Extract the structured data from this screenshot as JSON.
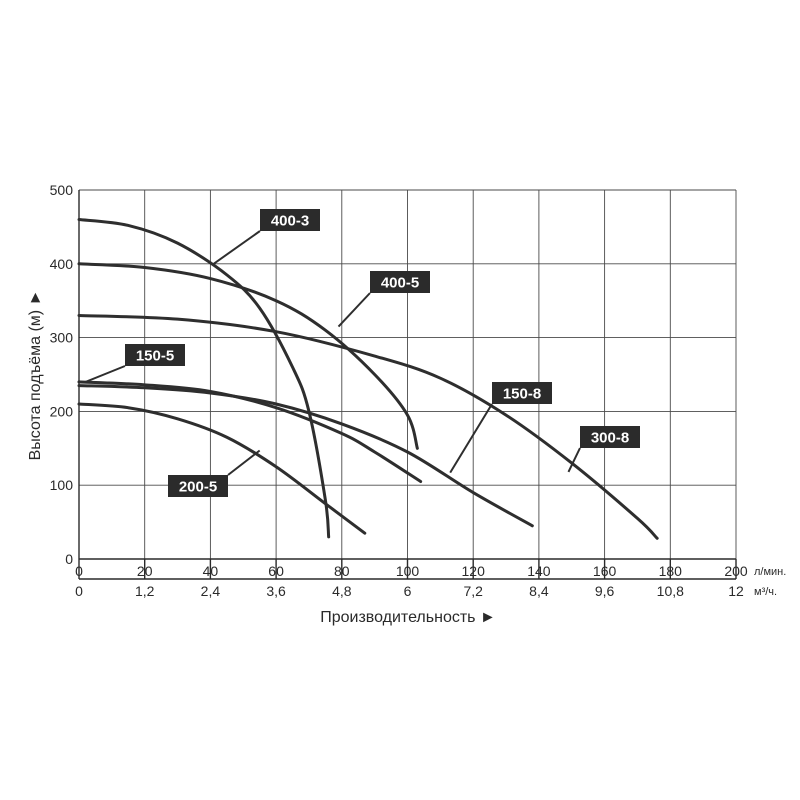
{
  "chart_data": {
    "type": "line",
    "ylabel": "Высота подъёма (м) ►",
    "xlabel": "Производительность ►",
    "x_unit": "л/мин.",
    "x2_unit": "м³/ч.",
    "xlim": [
      0,
      200
    ],
    "ylim": [
      0,
      500
    ],
    "x_ticks": [
      "0",
      "20",
      "40",
      "60",
      "80",
      "100",
      "120",
      "140",
      "160",
      "180",
      "200"
    ],
    "x2_ticks": [
      "0",
      "1,2",
      "2,4",
      "3,6",
      "4,8",
      "6",
      "7,2",
      "8,4",
      "9,6",
      "10,8",
      "12"
    ],
    "y_ticks": [
      "0",
      "100",
      "200",
      "300",
      "400",
      "500"
    ],
    "grid": true,
    "colors": {
      "curve": "#2e2e2e",
      "tag_bg": "#2b2b2b",
      "tag_text": "#ffffff",
      "grid": "#4a4a4a"
    },
    "series": [
      {
        "name": "400-3",
        "x": [
          0,
          15,
          30,
          45,
          55,
          65,
          70,
          75,
          76
        ],
        "y": [
          460,
          452,
          428,
          385,
          340,
          260,
          200,
          80,
          30
        ]
      },
      {
        "name": "400-5",
        "x": [
          0,
          20,
          40,
          60,
          75,
          90,
          100,
          103
        ],
        "y": [
          400,
          395,
          380,
          350,
          310,
          250,
          195,
          150
        ]
      },
      {
        "name": "300-8",
        "x": [
          0,
          30,
          60,
          90,
          110,
          130,
          150,
          170,
          176
        ],
        "y": [
          330,
          325,
          308,
          275,
          245,
          195,
          130,
          55,
          28
        ]
      },
      {
        "name": "150-8",
        "x": [
          0,
          20,
          40,
          60,
          80,
          100,
          120,
          138
        ],
        "y": [
          235,
          232,
          225,
          210,
          183,
          145,
          90,
          45
        ]
      },
      {
        "name": "150-5",
        "x": [
          0,
          20,
          40,
          60,
          80,
          90,
          104
        ],
        "y": [
          240,
          236,
          227,
          205,
          170,
          145,
          105
        ]
      },
      {
        "name": "200-5",
        "x": [
          0,
          15,
          30,
          45,
          60,
          75,
          87
        ],
        "y": [
          210,
          205,
          190,
          165,
          125,
          75,
          35
        ]
      }
    ],
    "labels": [
      {
        "text": "400-3",
        "anchor": [
          41,
          400
        ]
      },
      {
        "text": "400-5",
        "anchor": [
          79,
          315
        ]
      },
      {
        "text": "300-8",
        "anchor": [
          149,
          118
        ]
      },
      {
        "text": "150-8",
        "anchor": [
          113,
          117
        ]
      },
      {
        "text": "150-5",
        "anchor": [
          2,
          240
        ]
      },
      {
        "text": "200-5",
        "anchor": [
          55,
          147
        ]
      }
    ]
  }
}
